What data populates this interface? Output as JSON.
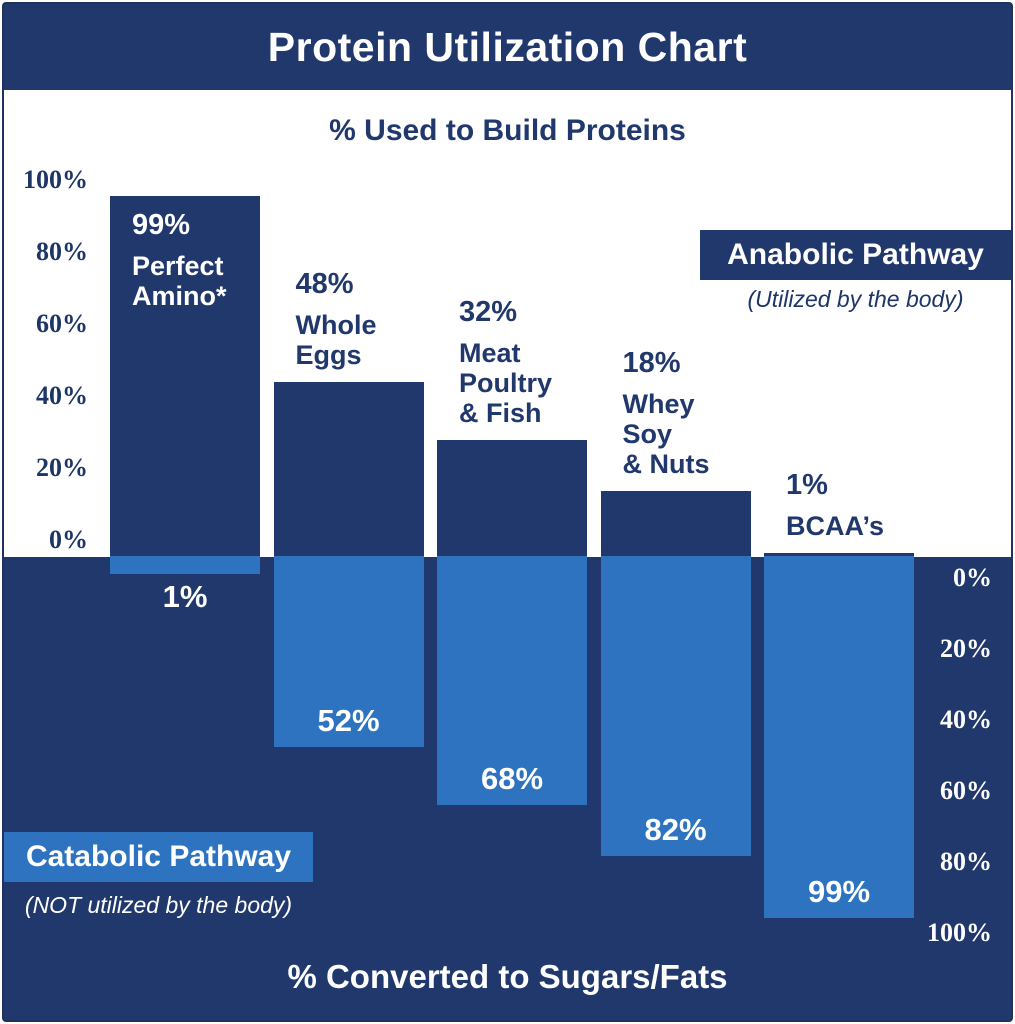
{
  "title": "Protein Utilization Chart",
  "colors": {
    "navy": "#21386c",
    "light_blue": "#2d73c0",
    "white": "#ffffff",
    "border": "#20335f"
  },
  "chart_data": {
    "type": "bar",
    "title": "Protein Utilization Chart",
    "subtitle_top": "% Used to Build Proteins",
    "subtitle_bottom": "% Converted to Sugars/Fats",
    "categories": [
      "Perfect Amino*",
      "Whole Eggs",
      "Meat Poultry & Fish",
      "Whey Soy & Nuts",
      "BCAA’s"
    ],
    "category_name_lines": [
      [
        "Perfect",
        "Amino*"
      ],
      [
        "Whole",
        "Eggs"
      ],
      [
        "Meat",
        "Poultry",
        "& Fish"
      ],
      [
        "Whey",
        "Soy",
        "& Nuts"
      ],
      [
        "BCAA’s"
      ]
    ],
    "series": [
      {
        "name": "Anabolic Pathway",
        "note": "(Utilized by the body)",
        "direction": "up",
        "values": [
          99,
          48,
          32,
          18,
          1
        ],
        "value_labels": [
          "99%",
          "48%",
          "32%",
          "18%",
          "1%"
        ]
      },
      {
        "name": "Catabolic Pathway",
        "note": "(NOT utilized by the body)",
        "direction": "down",
        "values": [
          1,
          52,
          68,
          82,
          99
        ],
        "value_labels": [
          "1%",
          "52%",
          "68%",
          "82%",
          "99%"
        ]
      }
    ],
    "left_axis": {
      "ticks": [
        100,
        80,
        60,
        40,
        20,
        0
      ],
      "tick_labels": [
        "100%",
        "80%",
        "60%",
        "40%",
        "20%",
        "0%"
      ]
    },
    "right_axis": {
      "ticks": [
        0,
        20,
        40,
        60,
        80,
        100
      ],
      "tick_labels": [
        "0%",
        "20%",
        "40%",
        "60%",
        "80%",
        "100%"
      ]
    },
    "ylim": [
      0,
      100
    ],
    "grid": false,
    "legend_position": "anabolic top-right, catabolic bottom-left"
  }
}
